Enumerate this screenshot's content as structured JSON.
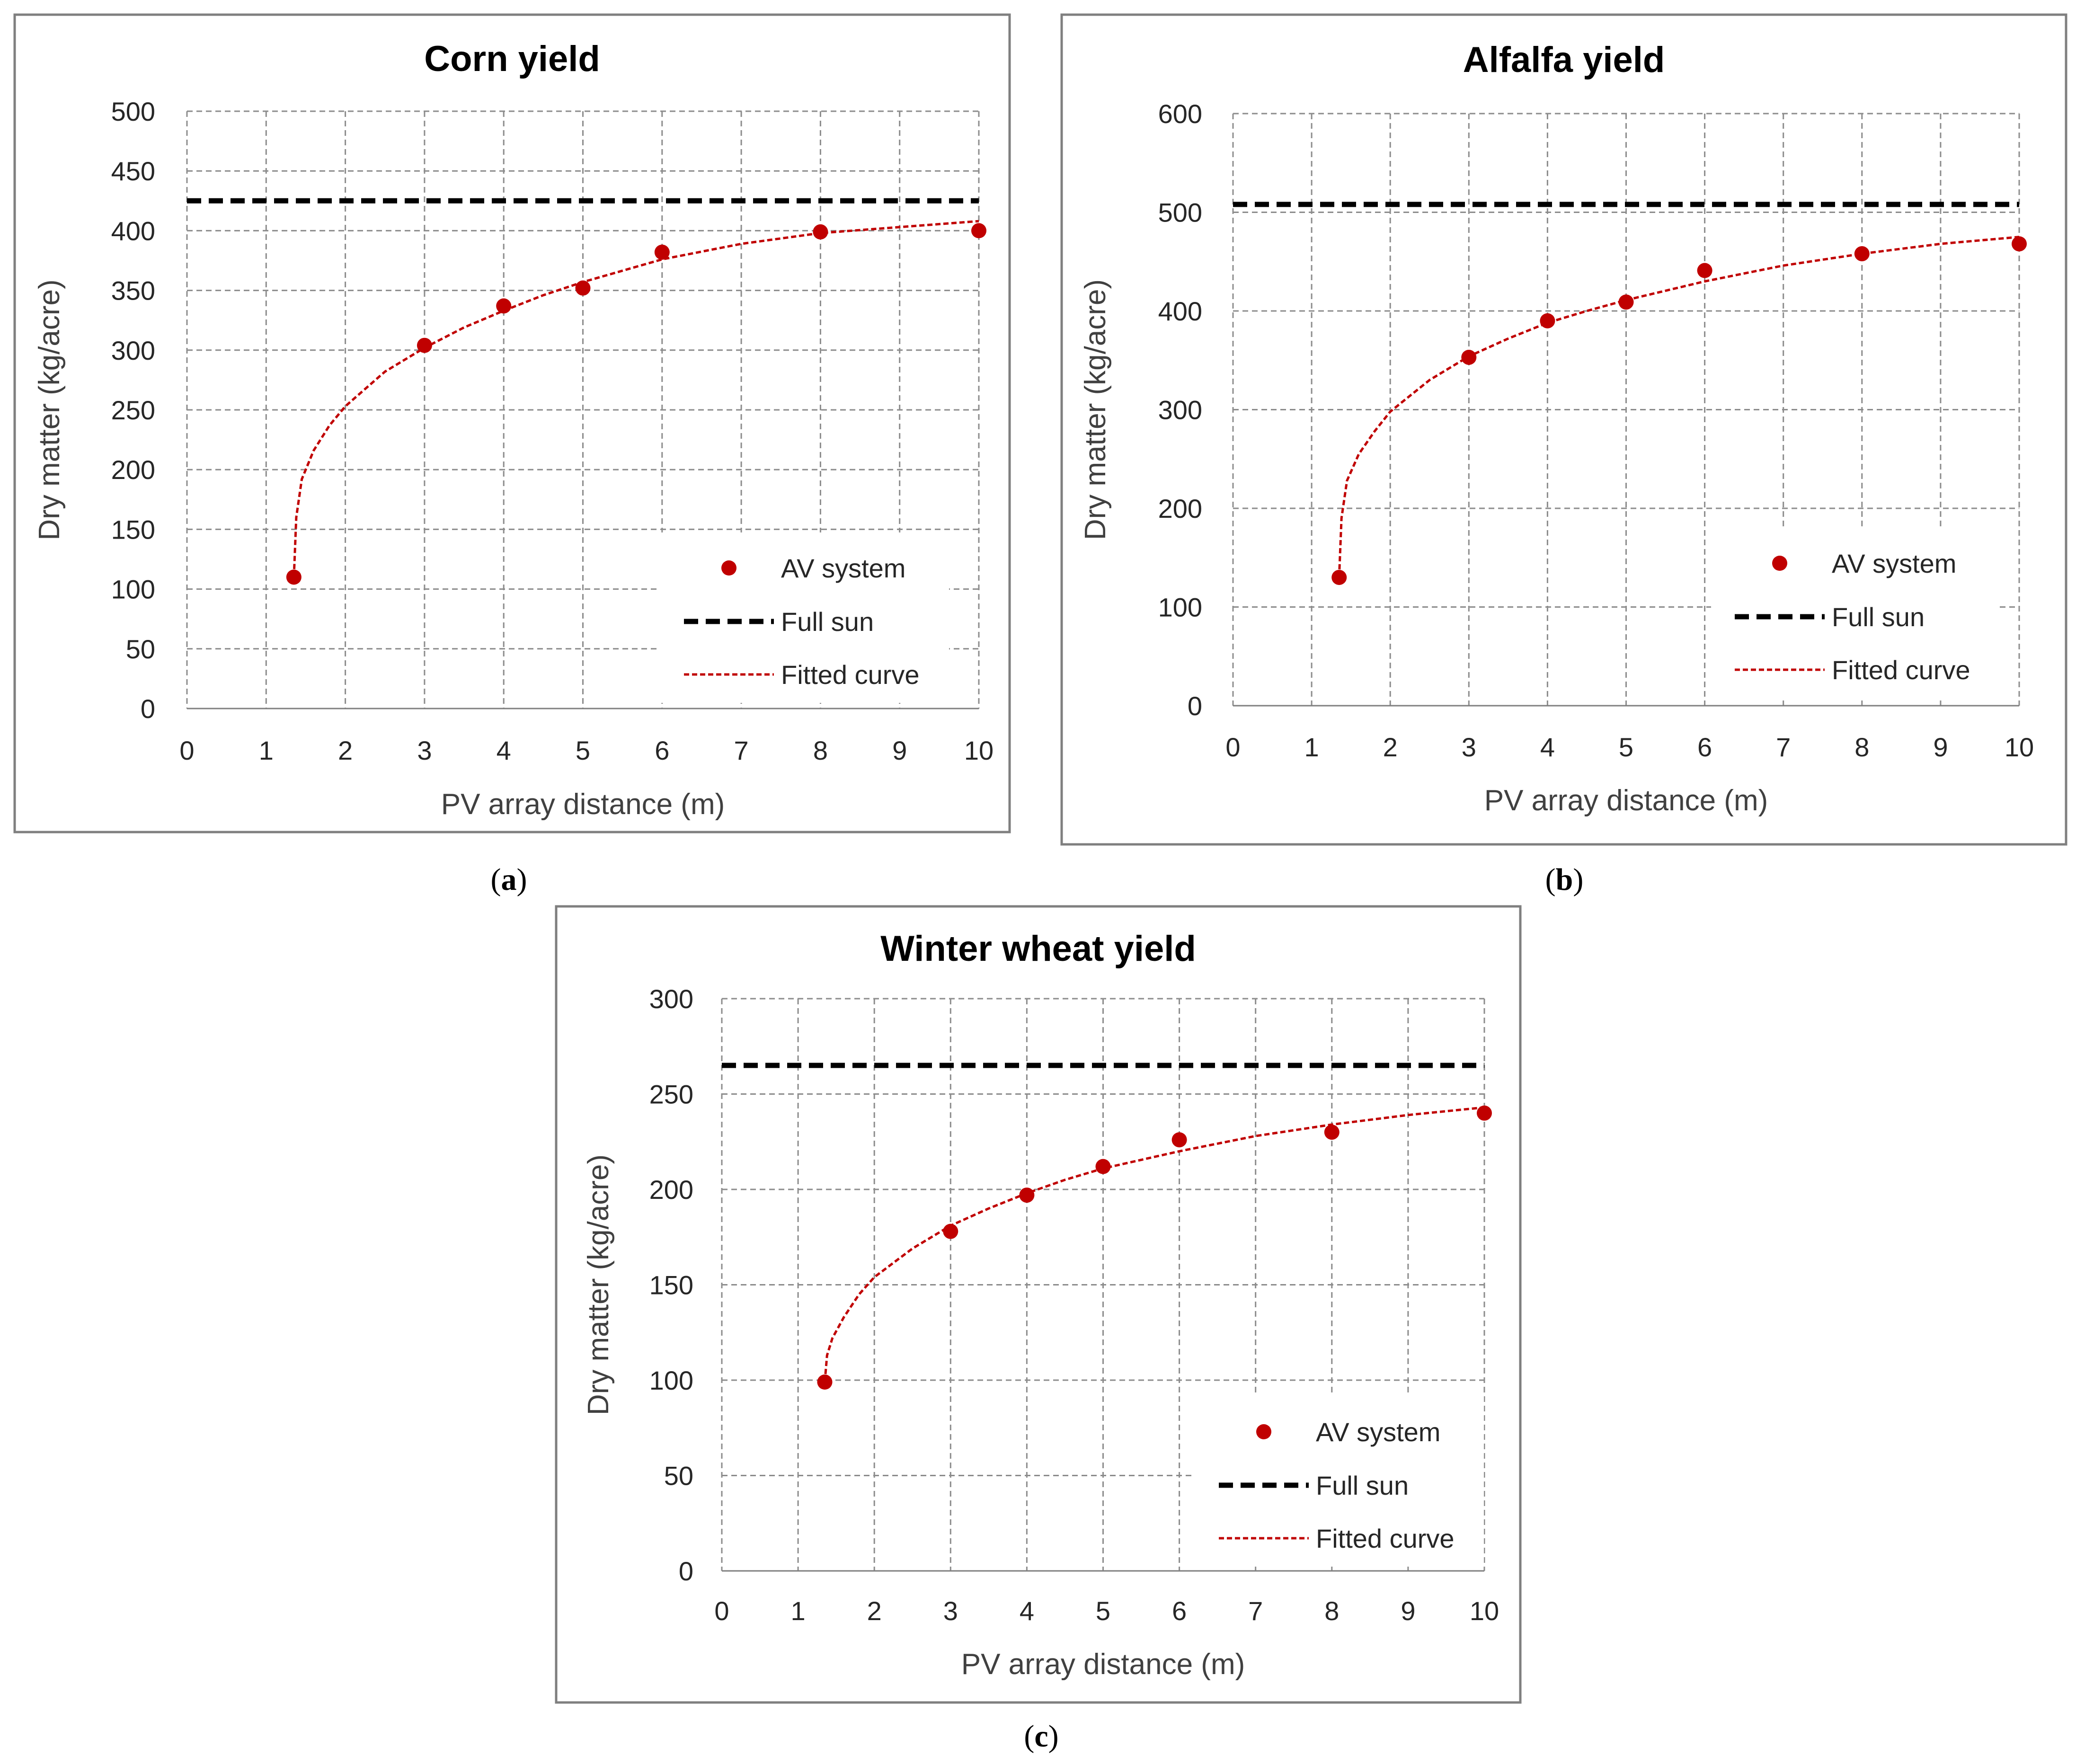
{
  "chart_data": [
    {
      "type": "scatter",
      "title": "Corn yield",
      "caption_letter": "a",
      "xlabel": "PV array distance (m)",
      "ylabel": "Dry matter (kg/acre)",
      "xlim": [
        0,
        10
      ],
      "ylim": [
        0,
        500
      ],
      "xticks": [
        0,
        1,
        2,
        3,
        4,
        5,
        6,
        7,
        8,
        9,
        10
      ],
      "yticks": [
        0,
        50,
        100,
        150,
        200,
        250,
        300,
        350,
        400,
        450,
        500
      ],
      "grid": true,
      "legend_position": "bottom-right",
      "series": [
        {
          "name": "AV system",
          "kind": "points",
          "color": "#C00000",
          "x": [
            1.35,
            3,
            4,
            5,
            6,
            8,
            10
          ],
          "y": [
            110,
            304,
            337,
            352,
            382,
            399,
            400
          ]
        },
        {
          "name": "Full sun",
          "kind": "hline",
          "color": "#000000",
          "y": 425
        },
        {
          "name": "Fitted curve",
          "kind": "curve",
          "color": "#C00000",
          "x": [
            1.35,
            1.38,
            1.45,
            1.6,
            1.8,
            2,
            2.5,
            3,
            3.5,
            4,
            4.5,
            5,
            6,
            7,
            8,
            9,
            10
          ],
          "y": [
            110,
            160,
            192,
            216,
            237,
            253,
            282,
            302,
            319,
            333,
            346,
            357,
            376,
            389,
            398,
            403,
            408
          ]
        }
      ]
    },
    {
      "type": "scatter",
      "title": "Alfalfa yield",
      "caption_letter": "b",
      "xlabel": "PV array distance (m)",
      "ylabel": "Dry matter (kg/acre)",
      "xlim": [
        0,
        10
      ],
      "ylim": [
        0,
        600
      ],
      "xticks": [
        0,
        1,
        2,
        3,
        4,
        5,
        6,
        7,
        8,
        9,
        10
      ],
      "yticks": [
        0,
        100,
        200,
        300,
        400,
        500,
        600
      ],
      "grid": true,
      "legend_position": "bottom-right",
      "series": [
        {
          "name": "AV system",
          "kind": "points",
          "color": "#C00000",
          "x": [
            1.35,
            3,
            4,
            5,
            6,
            8,
            10
          ],
          "y": [
            130,
            353,
            390,
            409,
            441,
            458,
            468
          ]
        },
        {
          "name": "Full sun",
          "kind": "hline",
          "color": "#000000",
          "y": 508
        },
        {
          "name": "Fitted curve",
          "kind": "curve",
          "color": "#C00000",
          "x": [
            1.35,
            1.38,
            1.45,
            1.6,
            1.8,
            2,
            2.5,
            3,
            3.5,
            4,
            4.5,
            5,
            6,
            7,
            8,
            9,
            10
          ],
          "y": [
            130,
            190,
            228,
            255,
            278,
            298,
            330,
            354,
            372,
            388,
            400,
            411,
            430,
            446,
            458,
            468,
            475
          ]
        }
      ]
    },
    {
      "type": "scatter",
      "title": "Winter wheat yield",
      "caption_letter": "c",
      "xlabel": "PV array distance (m)",
      "ylabel": "Dry matter (kg/acre)",
      "xlim": [
        0,
        10
      ],
      "ylim": [
        0,
        300
      ],
      "xticks": [
        0,
        1,
        2,
        3,
        4,
        5,
        6,
        7,
        8,
        9,
        10
      ],
      "yticks": [
        0,
        50,
        100,
        150,
        200,
        250,
        300
      ],
      "grid": true,
      "legend_position": "bottom-right",
      "series": [
        {
          "name": "AV system",
          "kind": "points",
          "color": "#C00000",
          "x": [
            1.35,
            3,
            4,
            5,
            6,
            8,
            10
          ],
          "y": [
            99,
            178,
            197,
            212,
            226,
            230,
            240
          ]
        },
        {
          "name": "Full sun",
          "kind": "hline",
          "color": "#000000",
          "y": 265
        },
        {
          "name": "Fitted curve",
          "kind": "curve",
          "color": "#C00000",
          "x": [
            1.35,
            1.38,
            1.45,
            1.6,
            1.8,
            2,
            2.5,
            3,
            3.5,
            4,
            4.5,
            5,
            6,
            7,
            8,
            9,
            10
          ],
          "y": [
            99,
            113,
            122,
            133,
            145,
            154,
            169,
            181,
            190,
            198,
            205,
            211,
            220,
            228,
            234,
            239,
            243
          ]
        }
      ]
    }
  ]
}
